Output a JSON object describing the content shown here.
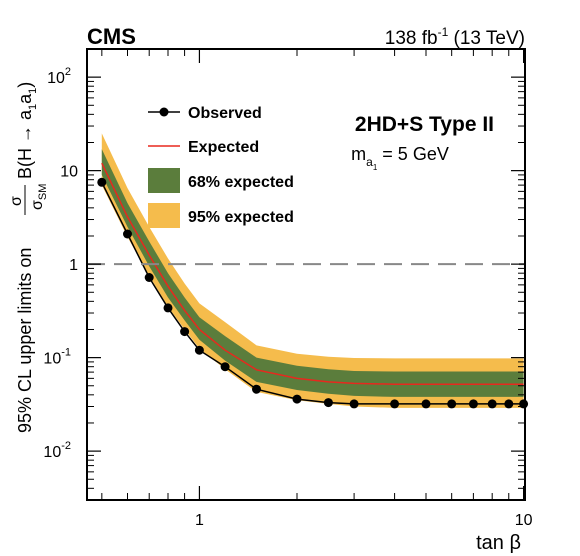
{
  "chart_data": {
    "type": "line",
    "experiment": "CMS",
    "lumi_label": {
      "base": "138 fb",
      "sup": "-1",
      "rest": " (13 TeV)"
    },
    "model_label": "2HD+S Type II",
    "mass_label": {
      "m": "m",
      "sub_a": "a",
      "sub_1": "1",
      "rest": " = 5 GeV"
    },
    "xlabel": "tan β",
    "ylabel": {
      "prefix": "95% CL upper limits on",
      "frac_num": "σ",
      "frac_den": "σ",
      "frac_den_sub": "SM",
      "br": "B(H → a",
      "br_sub1": "1",
      "br_mid": "a",
      "br_sub2": "1",
      "br_end": ")"
    },
    "x_scale": "log",
    "y_scale": "log",
    "xlim": [
      0.45,
      10.1
    ],
    "ylim": [
      0.003,
      200
    ],
    "x_ticks": [
      {
        "value": 1,
        "label": "1"
      },
      {
        "value": 10,
        "label": "10"
      }
    ],
    "y_ticks": [
      {
        "value": 0.01,
        "base": "10",
        "exp": "-2"
      },
      {
        "value": 0.1,
        "base": "10",
        "exp": "-1"
      },
      {
        "value": 1,
        "base": "1",
        "exp": ""
      },
      {
        "value": 10,
        "base": "10",
        "exp": ""
      },
      {
        "value": 100,
        "base": "10",
        "exp": "2"
      }
    ],
    "reference_line": {
      "y": 1,
      "style": "dashed",
      "color": "#888888"
    },
    "legend": {
      "placement": "top-left",
      "entries": [
        {
          "label": "Observed",
          "kind": "marker-line"
        },
        {
          "label": "Expected",
          "kind": "line"
        },
        {
          "label": "68% expected",
          "kind": "band68"
        },
        {
          "label": "95% expected",
          "kind": "band95"
        }
      ]
    },
    "colors": {
      "observed": "#000000",
      "expected": "#e8281e",
      "band68": "#5b7d3c",
      "band95": "#f5bc4c",
      "reference": "#888888"
    },
    "x": [
      0.5,
      0.6,
      0.7,
      0.8,
      0.9,
      1.0,
      1.2,
      1.5,
      2.0,
      2.5,
      3.0,
      4.0,
      5.0,
      6.0,
      7.0,
      8.0,
      9.0,
      10.0
    ],
    "series": [
      {
        "name": "Observed",
        "values": [
          7.5,
          2.1,
          0.72,
          0.34,
          0.19,
          0.12,
          0.08,
          0.046,
          0.036,
          0.033,
          0.032,
          0.032,
          0.032,
          0.032,
          0.032,
          0.032,
          0.032,
          0.032
        ]
      },
      {
        "name": "Expected",
        "values": [
          12.0,
          3.2,
          1.25,
          0.58,
          0.32,
          0.2,
          0.12,
          0.074,
          0.06,
          0.055,
          0.053,
          0.052,
          0.052,
          0.052,
          0.052,
          0.052,
          0.052,
          0.052
        ]
      }
    ],
    "bands": [
      {
        "name": "68% expected",
        "lower": [
          9.0,
          2.5,
          0.95,
          0.44,
          0.25,
          0.155,
          0.093,
          0.055,
          0.045,
          0.041,
          0.039,
          0.038,
          0.038,
          0.038,
          0.038,
          0.038,
          0.038,
          0.038
        ],
        "upper": [
          17.0,
          4.5,
          1.75,
          0.8,
          0.44,
          0.27,
          0.17,
          0.1,
          0.082,
          0.075,
          0.072,
          0.071,
          0.071,
          0.071,
          0.071,
          0.071,
          0.071,
          0.071
        ]
      },
      {
        "name": "95% expected",
        "lower": [
          7.0,
          1.95,
          0.75,
          0.35,
          0.2,
          0.125,
          0.075,
          0.043,
          0.035,
          0.032,
          0.03,
          0.029,
          0.029,
          0.029,
          0.029,
          0.029,
          0.029,
          0.029
        ],
        "upper": [
          25.0,
          6.5,
          2.5,
          1.15,
          0.62,
          0.38,
          0.24,
          0.135,
          0.11,
          0.102,
          0.099,
          0.098,
          0.098,
          0.098,
          0.098,
          0.098,
          0.098,
          0.098
        ]
      }
    ],
    "observed_points_x": [
      0.5,
      0.6,
      0.7,
      0.8,
      0.9,
      1.0,
      1.2,
      1.5,
      2.0,
      2.5,
      3.0,
      4.0,
      5.0,
      6.0,
      7.0,
      8.0,
      9.0,
      10.0
    ],
    "grid": false
  }
}
